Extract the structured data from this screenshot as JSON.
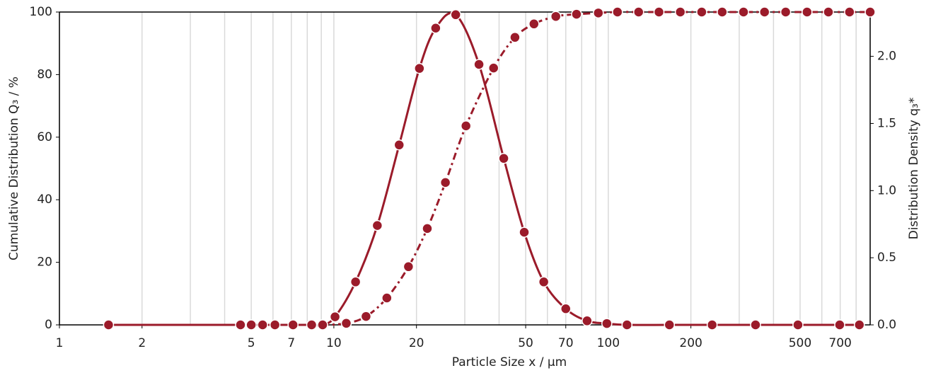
{
  "chart_data": {
    "type": "scatter",
    "x_label": "Particle Size x / µm",
    "y_label": "Cumulative Distribution Q₃ / %",
    "y2_label": "Distribution Density q₃*",
    "log_x": true,
    "xlim": [
      1,
      900
    ],
    "xticks": [
      1,
      2,
      5,
      7,
      10,
      20,
      50,
      70,
      100,
      200,
      500,
      700
    ],
    "xgrid": [
      1,
      2,
      3,
      4,
      5,
      6,
      7,
      8,
      9,
      10,
      20,
      30,
      40,
      50,
      60,
      70,
      80,
      90,
      100,
      200,
      300,
      400,
      500,
      600,
      700,
      800,
      900
    ],
    "ylim": [
      0,
      100
    ],
    "yticks": [
      0,
      20,
      40,
      60,
      80,
      100
    ],
    "y2lim": [
      0,
      2.33
    ],
    "y2ticks": [
      {
        "value": 0,
        "label": "0.0"
      },
      {
        "value": 0.5,
        "label": "0.5"
      },
      {
        "value": 1,
        "label": "1.0"
      },
      {
        "value": 1.5,
        "label": "1.5"
      },
      {
        "value": 2,
        "label": "2.0"
      }
    ],
    "grid": true,
    "series": [
      {
        "name": "Q3",
        "color": "#9b1b2a",
        "line": "dashdot",
        "axis": "y",
        "x": [
          4.57,
          5.0,
          5.5,
          6.1,
          7.1,
          8.3,
          9.1,
          11.1,
          13.1,
          15.6,
          18.7,
          21.9,
          25.5,
          30.3,
          38.2,
          45.7,
          53.6,
          64.4,
          76.6,
          92.0,
          108,
          129,
          153,
          183,
          219,
          260,
          311,
          371,
          443,
          530,
          634,
          757,
          900
        ],
        "values": [
          0,
          0,
          0,
          0,
          0,
          0,
          0,
          0.5,
          2.7,
          8.6,
          18.6,
          30.8,
          45.5,
          63.6,
          82.1,
          91.9,
          96.2,
          98.6,
          99.3,
          99.7,
          100,
          100,
          100,
          100,
          100,
          100,
          100,
          100,
          100,
          100,
          100,
          100,
          100
        ]
      },
      {
        "name": "q3",
        "color": "#9b1b2a",
        "line": "solid",
        "axis": "y2",
        "x": [
          1.51,
          4.57,
          5.0,
          5.5,
          6.1,
          7.1,
          8.3,
          9.1,
          10.1,
          12.0,
          14.4,
          17.3,
          20.5,
          23.5,
          27.8,
          33.8,
          41.6,
          49.4,
          58.2,
          70.0,
          83.7,
          98.8,
          117,
          167,
          239,
          344,
          491,
          697,
          822
        ],
        "values": [
          0,
          0,
          0,
          0,
          0,
          0,
          0,
          0,
          0.06,
          0.32,
          0.74,
          1.34,
          1.91,
          2.21,
          2.31,
          1.94,
          1.24,
          0.69,
          0.32,
          0.12,
          0.03,
          0.01,
          0,
          0,
          0,
          0,
          0,
          0,
          0
        ]
      }
    ]
  }
}
